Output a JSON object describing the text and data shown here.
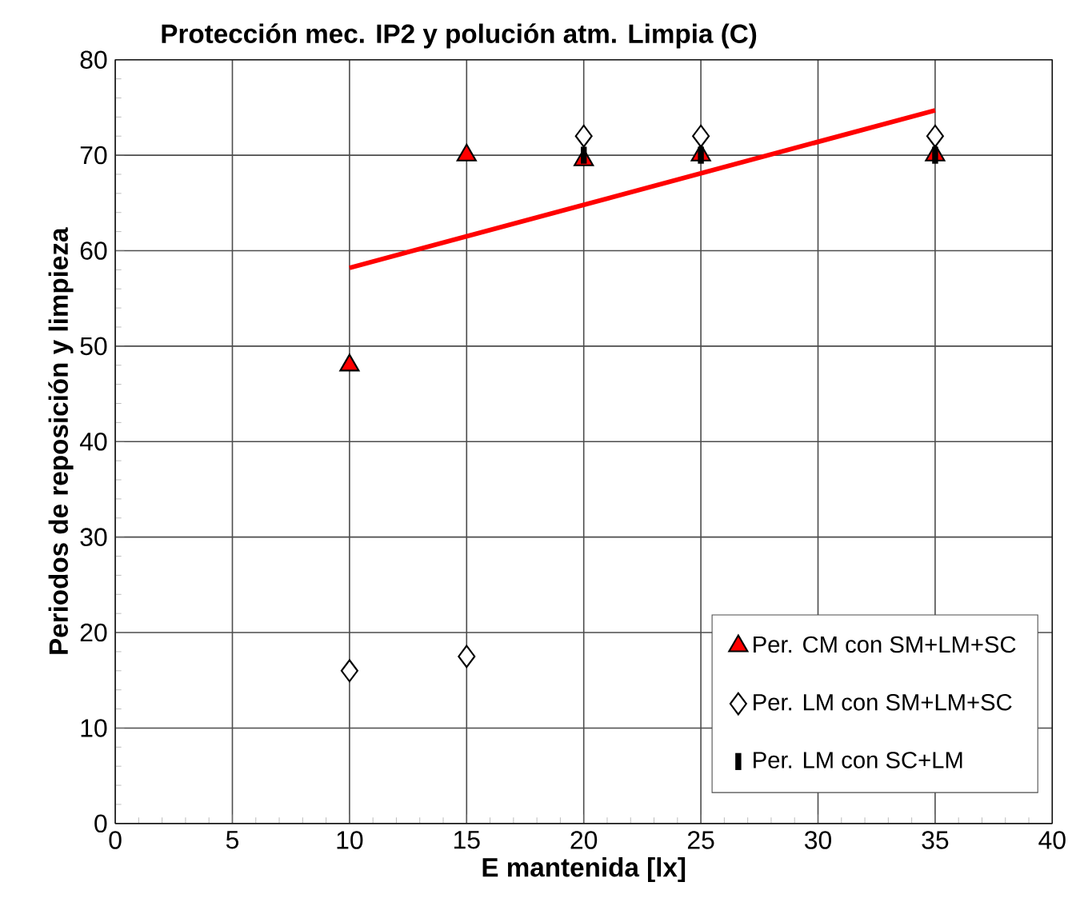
{
  "chart_data": {
    "type": "scatter",
    "title": "Protección mec.  IP2 y polución atm. Limpia (C)",
    "xlabel": "E mantenida [lx]",
    "ylabel": "Periodos de reposición y limpieza",
    "x": [
      10,
      15,
      20,
      25,
      35
    ],
    "series": [
      {
        "name": "Per. CM con SM+LM+SC",
        "color": "#ff0000",
        "marker": "triangle",
        "values": [
          48,
          70,
          69.5,
          70,
          70
        ]
      },
      {
        "name": "Per. LM con SM+LM+SC",
        "color": "#ffffff",
        "marker": "diamond",
        "values": [
          16,
          17.5,
          72,
          72,
          72
        ]
      },
      {
        "name": "Per. LM con SC+LM",
        "color": "#000000",
        "values": [
          null,
          null,
          70,
          70,
          70
        ]
      },
      {
        "type": "line",
        "color": "#ff0000",
        "marker": "none",
        "x": [
          10,
          35
        ],
        "values": [
          58.2,
          74.7
        ]
      }
    ],
    "xlim": [
      0,
      40
    ],
    "xticks": [
      0,
      5,
      10,
      15,
      20,
      25,
      30,
      35,
      40
    ],
    "ylim": [
      0,
      80
    ],
    "yticks": [
      0,
      10,
      20,
      30,
      40,
      50,
      60,
      70,
      80
    ],
    "grid": true,
    "legend": "bottom right"
  }
}
